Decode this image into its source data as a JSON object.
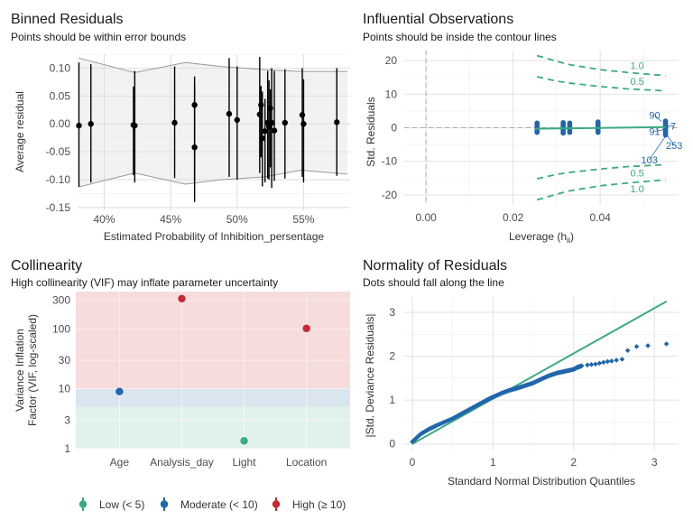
{
  "colors": {
    "low": "#3aaa80",
    "moderate": "#2166ac",
    "high": "#c9282e",
    "ref_line": "#3aaa80",
    "qq_points": "#2166ac",
    "infl_points": "#2166ac",
    "contour": "#3aaa80",
    "band_low": "#e1f2ea",
    "band_mod": "#dae5f0",
    "band_high": "#f7dcdc"
  },
  "chart_data": [
    {
      "type": "scatter",
      "title": "Binned Residuals",
      "subtitle": "Points should be within error bounds",
      "xlabel": "Estimated Probability of Inhibition_persentage",
      "ylabel": "Average residual",
      "xlim": [
        0.38,
        0.585
      ],
      "ylim": [
        -0.155,
        0.125
      ],
      "x_ticks": [
        {
          "value": 0.4,
          "label": "40%"
        },
        {
          "value": 0.45,
          "label": "45%"
        },
        {
          "value": 0.5,
          "label": "50%"
        },
        {
          "value": 0.55,
          "label": "55%"
        }
      ],
      "y_ticks": [
        {
          "value": 0.1,
          "label": "0.10"
        },
        {
          "value": 0.05,
          "label": "0.05"
        },
        {
          "value": 0.0,
          "label": "0.00"
        },
        {
          "value": -0.05,
          "label": "-0.05"
        },
        {
          "value": -0.1,
          "label": "-0.10"
        },
        {
          "value": -0.15,
          "label": "-0.15"
        }
      ],
      "grid": true,
      "bounds_upper": {
        "x": [
          0.381,
          0.423,
          0.461,
          0.488,
          0.521,
          0.548,
          0.583
        ],
        "y": [
          0.118,
          0.092,
          0.11,
          0.103,
          0.097,
          0.094,
          0.094
        ]
      },
      "bounds_lower": {
        "x": [
          0.381,
          0.423,
          0.461,
          0.488,
          0.521,
          0.548,
          0.583
        ],
        "y": [
          -0.113,
          -0.088,
          -0.108,
          -0.1,
          -0.095,
          -0.083,
          -0.09
        ]
      },
      "points": [
        {
          "x": 0.381,
          "y": -0.003,
          "lo": -0.113,
          "hi": 0.11
        },
        {
          "x": 0.39,
          "y": 0.0,
          "lo": -0.105,
          "hi": 0.107
        },
        {
          "x": 0.422,
          "y": -0.002,
          "lo": -0.092,
          "hi": 0.067
        },
        {
          "x": 0.423,
          "y": -0.003,
          "lo": -0.105,
          "hi": 0.095
        },
        {
          "x": 0.453,
          "y": 0.002,
          "lo": -0.097,
          "hi": 0.103
        },
        {
          "x": 0.468,
          "y": 0.034,
          "lo": -0.1,
          "hi": 0.085
        },
        {
          "x": 0.468,
          "y": -0.042,
          "lo": -0.14,
          "hi": 0.07
        },
        {
          "x": 0.494,
          "y": 0.018,
          "lo": -0.095,
          "hi": 0.118
        },
        {
          "x": 0.5,
          "y": 0.007,
          "lo": -0.1,
          "hi": 0.103
        },
        {
          "x": 0.517,
          "y": 0.017,
          "lo": -0.088,
          "hi": 0.12
        },
        {
          "x": 0.518,
          "y": 0.034,
          "lo": -0.06,
          "hi": 0.068
        },
        {
          "x": 0.519,
          "y": -0.026,
          "lo": -0.112,
          "hi": 0.058
        },
        {
          "x": 0.521,
          "y": -0.013,
          "lo": -0.105,
          "hi": 0.045
        },
        {
          "x": 0.523,
          "y": 0.002,
          "lo": -0.098,
          "hi": 0.095
        },
        {
          "x": 0.524,
          "y": -0.005,
          "lo": -0.1,
          "hi": 0.078
        },
        {
          "x": 0.525,
          "y": 0.028,
          "lo": -0.078,
          "hi": 0.062
        },
        {
          "x": 0.526,
          "y": 0.002,
          "lo": -0.115,
          "hi": 0.1
        },
        {
          "x": 0.528,
          "y": -0.012,
          "lo": -0.102,
          "hi": 0.095
        },
        {
          "x": 0.536,
          "y": 0.002,
          "lo": -0.098,
          "hi": 0.098
        },
        {
          "x": 0.549,
          "y": 0.016,
          "lo": -0.095,
          "hi": 0.1
        },
        {
          "x": 0.55,
          "y": 0.0,
          "lo": -0.105,
          "hi": 0.08
        },
        {
          "x": 0.575,
          "y": 0.003,
          "lo": -0.093,
          "hi": 0.1
        }
      ]
    },
    {
      "type": "scatter",
      "title": "Influential Observations",
      "subtitle": "Points should be inside the contour lines",
      "xlabel": "Leverage (h",
      "xlabel_sub": "ii",
      "xlabel_end": ")",
      "ylabel": "Std. Residuals",
      "xlim": [
        -0.005,
        0.058
      ],
      "ylim": [
        -23,
        23
      ],
      "x_ticks": [
        {
          "value": 0.0,
          "label": "0.00"
        },
        {
          "value": 0.02,
          "label": "0.02"
        },
        {
          "value": 0.04,
          "label": "0.04"
        }
      ],
      "y_ticks": [
        {
          "value": 20,
          "label": "20"
        },
        {
          "value": 10,
          "label": "10"
        },
        {
          "value": 0,
          "label": "0"
        },
        {
          "value": -10,
          "label": "-10"
        },
        {
          "value": -20,
          "label": "-20"
        }
      ],
      "grid": true,
      "leverage_clusters": [
        {
          "x": 0.0255,
          "ymin": -1.4,
          "ymax": 1.6
        },
        {
          "x": 0.0315,
          "ymin": -1.6,
          "ymax": 1.8
        },
        {
          "x": 0.033,
          "ymin": -1.4,
          "ymax": 1.6
        },
        {
          "x": 0.0395,
          "ymin": -1.4,
          "ymax": 1.8
        },
        {
          "x": 0.055,
          "ymin": -2.2,
          "ymax": 2.2
        }
      ],
      "fit_line": {
        "x": [
          0.025,
          0.055
        ],
        "y": [
          -0.3,
          0.2
        ]
      },
      "contours": [
        {
          "label": "1.0",
          "x": [
            0.0255,
            0.03,
            0.033,
            0.04,
            0.046,
            0.055
          ],
          "y": [
            21.5,
            19.8,
            18.8,
            17.3,
            16.5,
            15.5
          ]
        },
        {
          "label": "0.5",
          "x": [
            0.0255,
            0.03,
            0.033,
            0.04,
            0.046,
            0.055
          ],
          "y": [
            15.2,
            13.9,
            13.3,
            12.3,
            11.6,
            11.0
          ]
        },
        {
          "label": "0.5",
          "x": [
            0.0255,
            0.03,
            0.033,
            0.04,
            0.046,
            0.055
          ],
          "y": [
            -15.2,
            -13.9,
            -13.3,
            -12.3,
            -11.6,
            -11.0
          ]
        },
        {
          "label": "1.0",
          "x": [
            0.0255,
            0.03,
            0.033,
            0.04,
            0.046,
            0.055
          ],
          "y": [
            -21.5,
            -19.8,
            -18.8,
            -17.3,
            -16.5,
            -15.5
          ]
        }
      ],
      "contour_labels": [
        {
          "text": "1.0",
          "x": 0.0485,
          "y": 18.5
        },
        {
          "text": "0.5",
          "x": 0.0485,
          "y": 13.8
        },
        {
          "text": "0.5",
          "x": 0.0485,
          "y": -13.4
        },
        {
          "text": "1.0",
          "x": 0.0485,
          "y": -18.2
        }
      ],
      "labeled_points": [
        {
          "text": "90",
          "x": 0.054,
          "y": 1.9,
          "lx": 0.0525,
          "ly": 3.7
        },
        {
          "text": "7",
          "x": 0.055,
          "y": 0.5,
          "lx": 0.0568,
          "ly": 0.5
        },
        {
          "text": "91",
          "x": 0.0548,
          "y": -0.5,
          "lx": 0.0525,
          "ly": -1.1
        },
        {
          "text": "253",
          "x": 0.0552,
          "y": -1.8,
          "lx": 0.057,
          "ly": -5.3
        },
        {
          "text": "103",
          "x": 0.0552,
          "y": -2.2,
          "lx": 0.0513,
          "ly": -9.5
        }
      ]
    },
    {
      "type": "scatter",
      "title": "Collinearity",
      "subtitle": "High collinearity (VIF) may inflate parameter uncertainty",
      "xlabel": "",
      "ylabel": "Variance Inflation",
      "ylabel2": "Factor (VIF, log-scaled)",
      "log_y": true,
      "ylim": [
        1,
        420
      ],
      "categories": [
        "Age",
        "Analysis_day",
        "Light",
        "Location"
      ],
      "y_ticks": [
        {
          "value": 1,
          "label": "1"
        },
        {
          "value": 3,
          "label": "3"
        },
        {
          "value": 10,
          "label": "10"
        },
        {
          "value": 30,
          "label": "30"
        },
        {
          "value": 100,
          "label": "100"
        },
        {
          "value": 300,
          "label": "300"
        }
      ],
      "bands": [
        {
          "from": 1,
          "to": 5,
          "level": "low"
        },
        {
          "from": 5,
          "to": 10,
          "level": "moderate"
        },
        {
          "from": 10,
          "to": 420,
          "level": "high"
        }
      ],
      "points": [
        {
          "category": "Age",
          "vif": 9.0,
          "lo": 8.3,
          "hi": 9.8,
          "level": "moderate"
        },
        {
          "category": "Analysis_day",
          "vif": 320,
          "lo": 295,
          "hi": 348,
          "level": "high"
        },
        {
          "category": "Light",
          "vif": 1.35,
          "lo": 1.29,
          "hi": 1.42,
          "level": "low"
        },
        {
          "category": "Location",
          "vif": 102,
          "lo": 92,
          "hi": 113,
          "level": "high"
        }
      ],
      "legend": {
        "placement": "bottom",
        "items": [
          {
            "label": "Low (< 5)",
            "level": "low"
          },
          {
            "label": "Moderate (< 10)",
            "level": "moderate"
          },
          {
            "label": "High (≥ 10)",
            "level": "high"
          }
        ]
      }
    },
    {
      "type": "scatter",
      "title": "Normality of Residuals",
      "subtitle": "Dots should fall along the line",
      "xlabel": "Standard Normal Distribution Quantiles",
      "ylabel": "|Std. Deviance Residuals|",
      "xlim": [
        -0.1,
        3.3
      ],
      "ylim": [
        -0.15,
        3.35
      ],
      "x_ticks": [
        {
          "value": 0,
          "label": "0"
        },
        {
          "value": 1,
          "label": "1"
        },
        {
          "value": 2,
          "label": "2"
        },
        {
          "value": 3,
          "label": "3"
        }
      ],
      "y_ticks": [
        {
          "value": 0,
          "label": "0"
        },
        {
          "value": 1,
          "label": "1"
        },
        {
          "value": 2,
          "label": "2"
        },
        {
          "value": 3,
          "label": "3"
        }
      ],
      "grid": true,
      "reference_line": {
        "x": [
          0,
          3.15
        ],
        "y": [
          0,
          3.25
        ]
      },
      "points_curve": {
        "x": [
          0.0,
          0.1,
          0.2,
          0.3,
          0.5,
          0.7,
          0.9,
          1.0,
          1.1,
          1.2,
          1.3,
          1.4,
          1.5,
          1.6,
          1.7,
          1.8,
          1.9,
          2.0,
          2.05,
          2.1
        ],
        "y": [
          0.05,
          0.22,
          0.33,
          0.42,
          0.58,
          0.78,
          0.98,
          1.07,
          1.15,
          1.22,
          1.27,
          1.33,
          1.39,
          1.48,
          1.56,
          1.62,
          1.66,
          1.7,
          1.75,
          1.78
        ]
      },
      "points_tail": [
        {
          "x": 2.17,
          "y": 1.8
        },
        {
          "x": 2.22,
          "y": 1.81
        },
        {
          "x": 2.27,
          "y": 1.82
        },
        {
          "x": 2.32,
          "y": 1.84
        },
        {
          "x": 2.37,
          "y": 1.86
        },
        {
          "x": 2.42,
          "y": 1.88
        },
        {
          "x": 2.47,
          "y": 1.89
        },
        {
          "x": 2.53,
          "y": 1.91
        },
        {
          "x": 2.6,
          "y": 1.93
        },
        {
          "x": 2.67,
          "y": 2.13
        },
        {
          "x": 2.78,
          "y": 2.22
        },
        {
          "x": 2.92,
          "y": 2.24
        },
        {
          "x": 3.15,
          "y": 2.28
        }
      ]
    }
  ]
}
